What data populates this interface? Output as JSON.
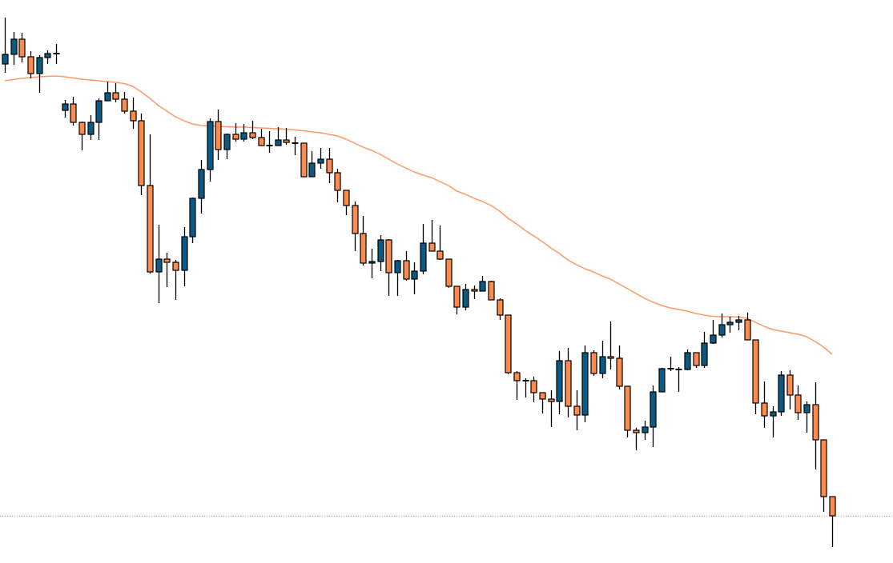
{
  "chart_data": {
    "type": "candlestick",
    "title": "",
    "xlabel": "",
    "ylabel": "",
    "grid": false,
    "legend": "none",
    "value_note_scale": "relative",
    "colors": {
      "bullish": "#0b5a84",
      "bearish": "#fe8a4e",
      "outline": "#000000",
      "moving_average": "#ff9a66",
      "current_price_line": "#f0956a",
      "background": "#ffffff"
    },
    "ohlc": [
      [
        624,
        682,
        613,
        636
      ],
      [
        636,
        664,
        623,
        655
      ],
      [
        655,
        663,
        626,
        633
      ],
      [
        633,
        640,
        606,
        612
      ],
      [
        612,
        635,
        588,
        632
      ],
      [
        632,
        641,
        624,
        637
      ],
      [
        637,
        649,
        624,
        637
      ],
      [
        566,
        579,
        557,
        574
      ],
      [
        574,
        583,
        547,
        551
      ],
      [
        551,
        552,
        516,
        536
      ],
      [
        536,
        560,
        529,
        551
      ],
      [
        551,
        581,
        529,
        578
      ],
      [
        578,
        602,
        578,
        588
      ],
      [
        588,
        600,
        576,
        580
      ],
      [
        580,
        589,
        562,
        565
      ],
      [
        565,
        582,
        543,
        553
      ],
      [
        553,
        562,
        460,
        472
      ],
      [
        472,
        536,
        362,
        364
      ],
      [
        364,
        423,
        325,
        380
      ],
      [
        380,
        388,
        345,
        376
      ],
      [
        376,
        379,
        329,
        366
      ],
      [
        366,
        420,
        346,
        408
      ],
      [
        408,
        457,
        400,
        456
      ],
      [
        456,
        504,
        437,
        492
      ],
      [
        492,
        556,
        477,
        552
      ],
      [
        552,
        567,
        504,
        517
      ],
      [
        517,
        537,
        505,
        536
      ],
      [
        536,
        550,
        527,
        530
      ],
      [
        530,
        549,
        527,
        538
      ],
      [
        538,
        553,
        530,
        532
      ],
      [
        532,
        543,
        522,
        522
      ],
      [
        522,
        540,
        513,
        522
      ],
      [
        522,
        545,
        522,
        529
      ],
      [
        529,
        544,
        523,
        526
      ],
      [
        525,
        533,
        510,
        525
      ],
      [
        525,
        525,
        483,
        483
      ],
      [
        483,
        515,
        483,
        500
      ],
      [
        500,
        519,
        493,
        505
      ],
      [
        505,
        519,
        475,
        488
      ],
      [
        488,
        493,
        451,
        466
      ],
      [
        466,
        466,
        435,
        447
      ],
      [
        447,
        452,
        390,
        412
      ],
      [
        412,
        434,
        372,
        375
      ],
      [
        375,
        393,
        356,
        377
      ],
      [
        377,
        410,
        365,
        404
      ],
      [
        404,
        405,
        334,
        363
      ],
      [
        363,
        379,
        334,
        378
      ],
      [
        378,
        390,
        353,
        355
      ],
      [
        355,
        376,
        336,
        365
      ],
      [
        365,
        424,
        361,
        400
      ],
      [
        400,
        429,
        390,
        390
      ],
      [
        390,
        422,
        379,
        380
      ],
      [
        380,
        380,
        344,
        346
      ],
      [
        346,
        346,
        311,
        320
      ],
      [
        320,
        349,
        316,
        342
      ],
      [
        342,
        347,
        330,
        340
      ],
      [
        340,
        359,
        340,
        352
      ],
      [
        352,
        353,
        329,
        329
      ],
      [
        329,
        331,
        304,
        310
      ],
      [
        310,
        310,
        236,
        238
      ],
      [
        238,
        240,
        204,
        228
      ],
      [
        228,
        231,
        207,
        228
      ],
      [
        228,
        233,
        201,
        213
      ],
      [
        213,
        213,
        187,
        205
      ],
      [
        205,
        216,
        170,
        202
      ],
      [
        202,
        265,
        186,
        253
      ],
      [
        253,
        269,
        182,
        196
      ],
      [
        196,
        216,
        166,
        185
      ],
      [
        185,
        272,
        176,
        263
      ],
      [
        263,
        266,
        234,
        237
      ],
      [
        237,
        278,
        231,
        258
      ],
      [
        258,
        302,
        242,
        256
      ],
      [
        256,
        272,
        217,
        221
      ],
      [
        221,
        221,
        157,
        166
      ],
      [
        166,
        169,
        141,
        163
      ],
      [
        163,
        178,
        154,
        170
      ],
      [
        170,
        222,
        145,
        214
      ],
      [
        214,
        244,
        214,
        243
      ],
      [
        243,
        258,
        240,
        243
      ],
      [
        242,
        245,
        214,
        242
      ],
      [
        242,
        267,
        241,
        263
      ],
      [
        263,
        263,
        244,
        247
      ],
      [
        247,
        289,
        244,
        275
      ],
      [
        275,
        304,
        274,
        285
      ],
      [
        285,
        312,
        282,
        298
      ],
      [
        298,
        308,
        288,
        301
      ],
      [
        301,
        309,
        291,
        304
      ],
      [
        304,
        313,
        279,
        279
      ],
      [
        279,
        279,
        186,
        200
      ],
      [
        200,
        227,
        169,
        184
      ],
      [
        184,
        196,
        157,
        189
      ],
      [
        189,
        240,
        184,
        235
      ],
      [
        235,
        241,
        192,
        210
      ],
      [
        210,
        222,
        179,
        188
      ],
      [
        188,
        202,
        163,
        198
      ],
      [
        198,
        226,
        117,
        154
      ],
      [
        154,
        154,
        64,
        83
      ],
      [
        83,
        83,
        20,
        59
      ]
    ],
    "moving_average": [
      603,
      604.5,
      606,
      607,
      608,
      608.5,
      609,
      608,
      606.5,
      605,
      604,
      603,
      602,
      601,
      599.5,
      596,
      589,
      581,
      572,
      565,
      558,
      553,
      549,
      547,
      546.5,
      546,
      545.5,
      545,
      545,
      544.5,
      544,
      543.5,
      543,
      542.5,
      541.5,
      540.5,
      539,
      538,
      536,
      534,
      530,
      525,
      520,
      516,
      511,
      505,
      499,
      494,
      489,
      485,
      482,
      477,
      472,
      465,
      461,
      456,
      452,
      447,
      440,
      431,
      424,
      416,
      409,
      402,
      394,
      387,
      379,
      373,
      368,
      364,
      359,
      355,
      349,
      343,
      337,
      331,
      326,
      322,
      319,
      317,
      315,
      312,
      310,
      308.5,
      308,
      308,
      307.5,
      306,
      301,
      296,
      292,
      290,
      288,
      286,
      283,
      277,
      270,
      261
    ],
    "current_price": 59
  }
}
